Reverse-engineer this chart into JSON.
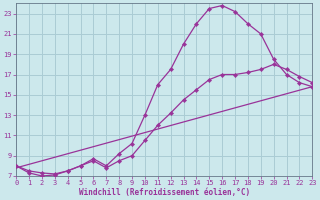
{
  "xlabel": "Windchill (Refroidissement éolien,°C)",
  "background_color": "#cce8ec",
  "line_color": "#993399",
  "grid_color": "#aaccd4",
  "xlim": [
    0,
    23
  ],
  "ylim": [
    7,
    24
  ],
  "xticks": [
    0,
    1,
    2,
    3,
    4,
    5,
    6,
    7,
    8,
    9,
    10,
    11,
    12,
    13,
    14,
    15,
    16,
    17,
    18,
    19,
    20,
    21,
    22,
    23
  ],
  "yticks": [
    7,
    9,
    11,
    13,
    15,
    17,
    19,
    21,
    23
  ],
  "curve1_x": [
    0,
    1,
    2,
    3,
    4,
    5,
    6,
    7,
    8,
    9,
    10,
    11,
    12,
    13,
    14,
    15,
    16,
    17,
    18,
    19,
    20,
    21,
    22,
    23
  ],
  "curve1_y": [
    8.0,
    7.3,
    7.0,
    7.1,
    7.5,
    8.0,
    8.7,
    8.0,
    9.2,
    10.2,
    13.0,
    16.0,
    17.5,
    20.0,
    22.0,
    23.5,
    23.8,
    23.2,
    22.0,
    21.0,
    18.5,
    17.0,
    16.2,
    15.8
  ],
  "curve2_x": [
    0,
    1,
    2,
    3,
    4,
    5,
    6,
    7,
    8,
    9,
    10,
    11,
    12,
    13,
    14,
    15,
    16,
    17,
    18,
    19,
    20,
    21,
    22,
    23
  ],
  "curve2_y": [
    8.0,
    7.5,
    7.3,
    7.2,
    7.5,
    8.0,
    8.5,
    7.8,
    8.5,
    9.0,
    10.5,
    12.0,
    13.2,
    14.5,
    15.5,
    16.5,
    17.0,
    17.0,
    17.2,
    17.5,
    18.0,
    17.5,
    16.8,
    16.2
  ],
  "curve3_x": [
    0,
    23
  ],
  "curve3_y": [
    7.8,
    15.8
  ]
}
